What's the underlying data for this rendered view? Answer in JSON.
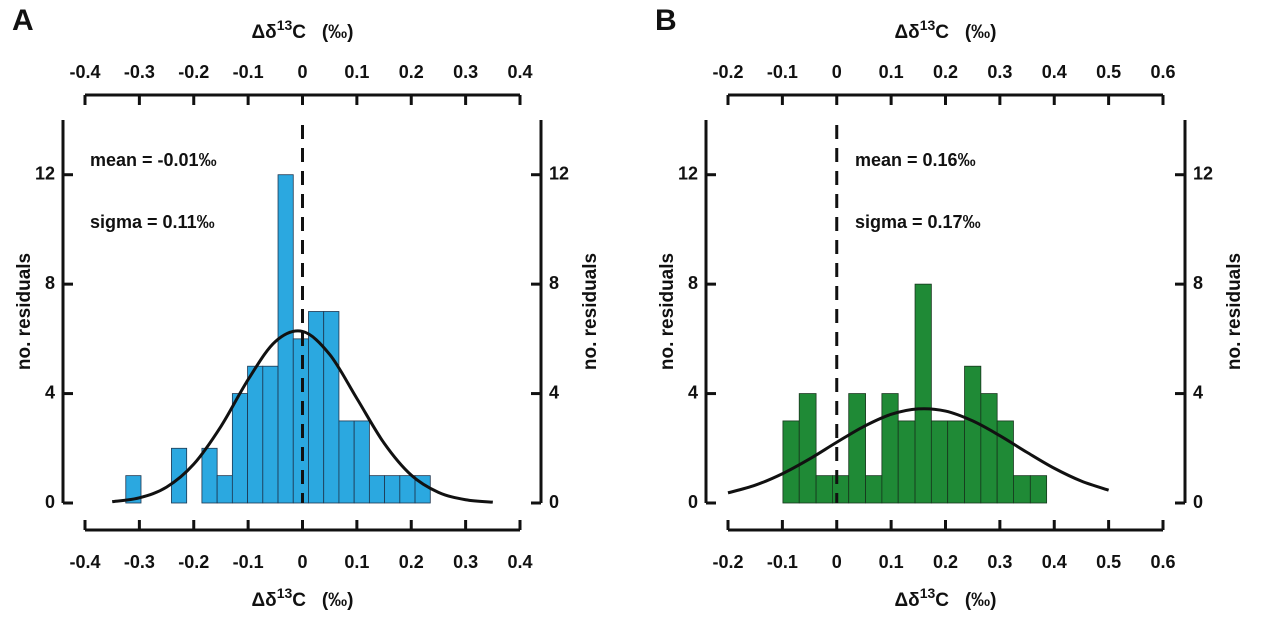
{
  "chart_data": [
    {
      "type": "histogram",
      "panel": "A",
      "x_label": {
        "symbol": "Δδ",
        "sup": "13",
        "rest": "C   (‰)"
      },
      "y_label": "no. residuals",
      "annotations": [
        "mean = -0.01‰",
        "sigma = 0.11‰"
      ],
      "bins": [
        -0.325,
        -0.297,
        -0.269,
        -0.241,
        -0.213,
        -0.185,
        -0.157,
        -0.129,
        -0.101,
        -0.073,
        -0.045,
        -0.017,
        0.011,
        0.039,
        0.067,
        0.095,
        0.123,
        0.151,
        0.179,
        0.207,
        0.235
      ],
      "values": [
        1,
        0,
        0,
        2,
        0,
        2,
        1,
        4,
        5,
        5,
        12,
        6,
        7,
        7,
        3,
        3,
        1,
        1,
        1,
        1
      ],
      "color": "#2ba8e0",
      "edge_color": "#1d3650",
      "curve": {
        "color": "#111111",
        "x": [
          -0.35,
          -0.3,
          -0.25,
          -0.2,
          -0.15,
          -0.1,
          -0.05,
          0,
          0.05,
          0.1,
          0.15,
          0.2,
          0.25,
          0.3,
          0.35
        ],
        "values": [
          0.05,
          0.19,
          0.58,
          1.42,
          2.8,
          4.51,
          5.9,
          6.27,
          5.43,
          3.82,
          2.19,
          1.02,
          0.39,
          0.12,
          0.03
        ]
      },
      "vline": 0,
      "xlim": [
        -0.4,
        0.4
      ],
      "xticks": [
        -0.4,
        -0.3,
        -0.2,
        -0.1,
        0,
        0.1,
        0.2,
        0.3,
        0.4
      ],
      "ylim": [
        0,
        14
      ],
      "yticks": [
        0,
        4,
        8,
        12
      ]
    },
    {
      "type": "histogram",
      "panel": "B",
      "x_label": {
        "symbol": "Δδ",
        "sup": "13",
        "rest": "C   (‰)"
      },
      "y_label": "no. residuals",
      "annotations": [
        "mean = 0.16‰",
        "sigma = 0.17‰"
      ],
      "bins": [
        -0.099,
        -0.069,
        -0.038,
        -0.008,
        0.022,
        0.053,
        0.083,
        0.113,
        0.144,
        0.174,
        0.204,
        0.235,
        0.265,
        0.295,
        0.325,
        0.356,
        0.386
      ],
      "values": [
        3,
        4,
        1,
        1,
        4,
        1,
        4,
        3,
        8,
        3,
        3,
        5,
        4,
        3,
        1,
        1
      ],
      "color": "#1f8a36",
      "edge_color": "#17361d",
      "curve": {
        "color": "#111111",
        "x": [
          -0.2,
          -0.15,
          -0.1,
          -0.05,
          0,
          0.05,
          0.1,
          0.15,
          0.2,
          0.25,
          0.3,
          0.35,
          0.4,
          0.45,
          0.5
        ],
        "values": [
          0.37,
          0.65,
          1.07,
          1.61,
          2.22,
          2.8,
          3.24,
          3.44,
          3.36,
          3.0,
          2.46,
          1.85,
          1.27,
          0.8,
          0.47
        ]
      },
      "vline": 0,
      "xlim": [
        -0.2,
        0.6
      ],
      "xticks": [
        -0.2,
        -0.1,
        0,
        0.1,
        0.2,
        0.3,
        0.4,
        0.5,
        0.6
      ],
      "ylim": [
        0,
        14
      ],
      "yticks": [
        0,
        4,
        8,
        12
      ]
    }
  ]
}
